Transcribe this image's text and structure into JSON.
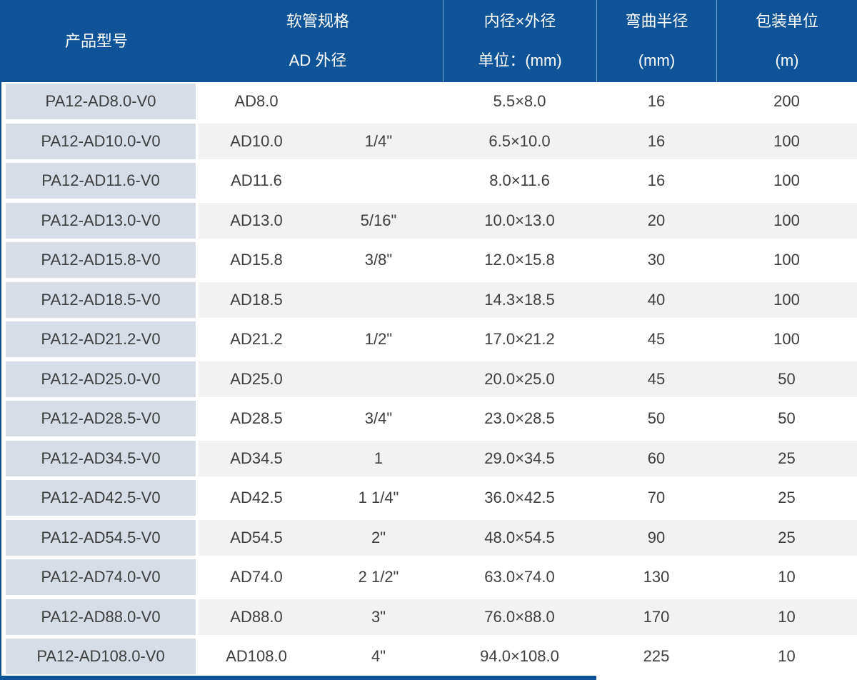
{
  "table": {
    "title_note": "PA12 V0 hose specification table",
    "header": {
      "model": "产品型号",
      "spec_line1": "软管规格",
      "spec_line2": "AD 外径",
      "size_line1": "内径×外径",
      "size_line2": "单位：(mm)",
      "bend_line1": "弯曲半径",
      "bend_line2": "(mm)",
      "pack_line1": "包装单位",
      "pack_line2": "(m)"
    },
    "rows": [
      {
        "model": "PA12-AD8.0-V0",
        "ad": "AD8.0",
        "inch": "",
        "size": "5.5×8.0",
        "bend": "16",
        "pack": "200"
      },
      {
        "model": "PA12-AD10.0-V0",
        "ad": "AD10.0",
        "inch": "1/4\"",
        "size": "6.5×10.0",
        "bend": "16",
        "pack": "100"
      },
      {
        "model": "PA12-AD11.6-V0",
        "ad": "AD11.6",
        "inch": "",
        "size": "8.0×11.6",
        "bend": "16",
        "pack": "100"
      },
      {
        "model": "PA12-AD13.0-V0",
        "ad": "AD13.0",
        "inch": "5/16\"",
        "size": "10.0×13.0",
        "bend": "20",
        "pack": "100"
      },
      {
        "model": "PA12-AD15.8-V0",
        "ad": "AD15.8",
        "inch": "3/8\"",
        "size": "12.0×15.8",
        "bend": "30",
        "pack": "100"
      },
      {
        "model": "PA12-AD18.5-V0",
        "ad": "AD18.5",
        "inch": "",
        "size": "14.3×18.5",
        "bend": "40",
        "pack": "100"
      },
      {
        "model": "PA12-AD21.2-V0",
        "ad": "AD21.2",
        "inch": "1/2\"",
        "size": "17.0×21.2",
        "bend": "45",
        "pack": "100"
      },
      {
        "model": "PA12-AD25.0-V0",
        "ad": "AD25.0",
        "inch": "",
        "size": "20.0×25.0",
        "bend": "45",
        "pack": "50"
      },
      {
        "model": "PA12-AD28.5-V0",
        "ad": "AD28.5",
        "inch": "3/4\"",
        "size": "23.0×28.5",
        "bend": "50",
        "pack": "50"
      },
      {
        "model": "PA12-AD34.5-V0",
        "ad": "AD34.5",
        "inch": "1",
        "size": "29.0×34.5",
        "bend": "60",
        "pack": "25"
      },
      {
        "model": "PA12-AD42.5-V0",
        "ad": "AD42.5",
        "inch": "1 1/4\"",
        "size": "36.0×42.5",
        "bend": "70",
        "pack": "25"
      },
      {
        "model": "PA12-AD54.5-V0",
        "ad": "AD54.5",
        "inch": "2\"",
        "size": "48.0×54.5",
        "bend": "90",
        "pack": "25"
      },
      {
        "model": "PA12-AD74.0-V0",
        "ad": "AD74.0",
        "inch": "2 1/2\"",
        "size": "63.0×74.0",
        "bend": "130",
        "pack": "10"
      },
      {
        "model": "PA12-AD88.0-V0",
        "ad": "AD88.0",
        "inch": "3\"",
        "size": "76.0×88.0",
        "bend": "170",
        "pack": "10"
      },
      {
        "model": "PA12-AD108.0-V0",
        "ad": "AD108.0",
        "inch": "4\"",
        "size": "94.0×108.0",
        "bend": "225",
        "pack": "10"
      }
    ]
  },
  "colors": {
    "header_blue": "#0f5499",
    "accent_blue": "#0d4e8f",
    "first_column_bg": "#d7dde6",
    "row_alternate_bg": "#f2f2f2",
    "body_text": "#3e3e3e",
    "header_text": "#ffffff"
  }
}
